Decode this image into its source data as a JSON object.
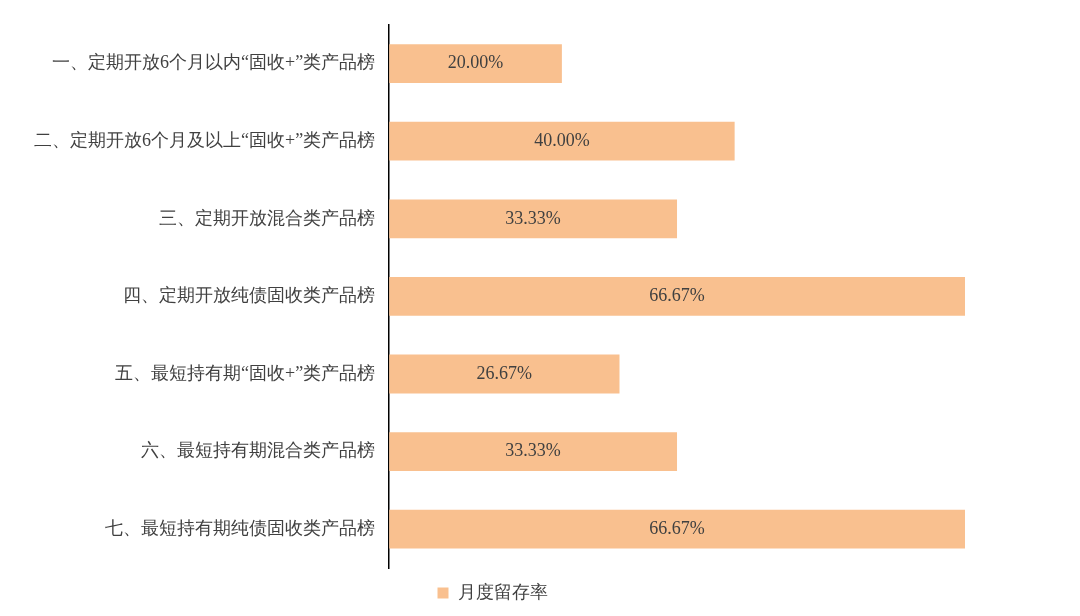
{
  "chart_data": {
    "type": "bar",
    "orientation": "horizontal",
    "categories": [
      "一、定期开放6个月以内“固收+”类产品榜",
      "二、定期开放6个月及以上“固收+”类产品榜",
      "三、定期开放混合类产品榜",
      "四、定期开放纯债固收类产品榜",
      "五、最短持有期“固收+”类产品榜",
      "六、最短持有期混合类产品榜",
      "七、最短持有期纯债固收类产品榜"
    ],
    "series": [
      {
        "name": "月度留存率",
        "color": "#f9c08f",
        "values": [
          20.0,
          40.0,
          33.33,
          66.67,
          26.67,
          33.33,
          66.67
        ],
        "value_labels": [
          "20.00%",
          "40.00%",
          "33.33%",
          "66.67%",
          "26.67%",
          "33.33%",
          "66.67%"
        ]
      }
    ],
    "legend": "bottom"
  }
}
